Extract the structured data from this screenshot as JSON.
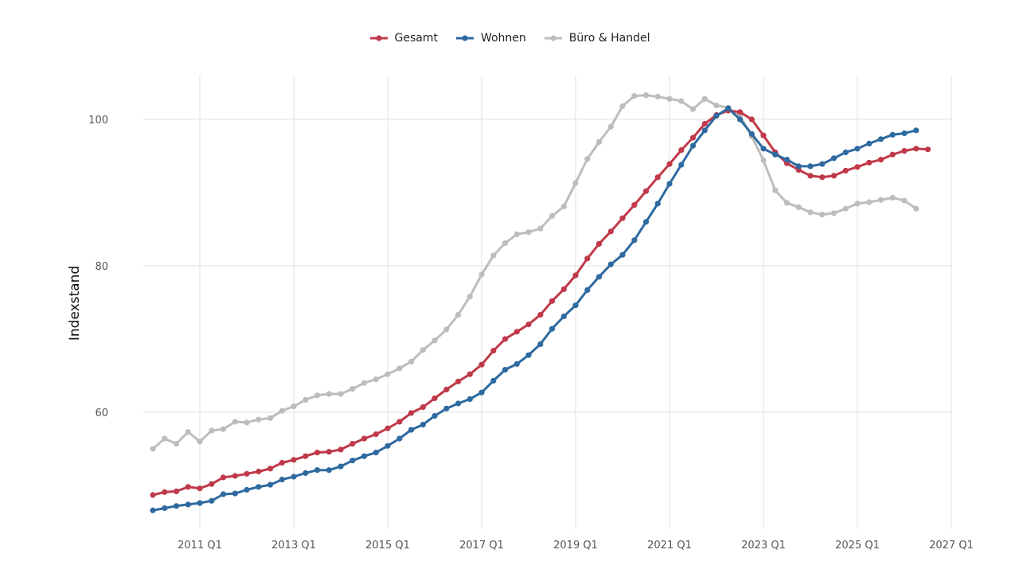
{
  "chart_data": {
    "type": "line",
    "title": "",
    "xlabel": "",
    "ylabel": "Indexstand",
    "legend_position": "top",
    "grid": true,
    "x_start": "2010 Q1",
    "x_ticks": [
      "2011 Q1",
      "2013 Q1",
      "2015 Q1",
      "2017 Q1",
      "2019 Q1",
      "2021 Q1",
      "2023 Q1",
      "2025 Q1",
      "2027 Q1"
    ],
    "y_ticks": [
      60,
      80,
      100
    ],
    "ylim": [
      45,
      106
    ],
    "series": [
      {
        "name": "Gesamt",
        "color": "#c0394a",
        "values": [
          48.7,
          49.1,
          49.2,
          49.8,
          49.6,
          50.2,
          51.1,
          51.3,
          51.6,
          51.9,
          52.3,
          53.1,
          53.5,
          54.0,
          54.5,
          54.6,
          54.9,
          55.7,
          56.4,
          57.0,
          57.8,
          58.7,
          59.9,
          60.7,
          61.9,
          63.1,
          64.2,
          65.2,
          66.5,
          68.4,
          70.0,
          71.0,
          72.0,
          73.3,
          75.2,
          76.8,
          78.7,
          81.0,
          83.0,
          84.7,
          86.5,
          88.3,
          90.2,
          92.1,
          93.9,
          95.8,
          97.5,
          99.4,
          100.6,
          101.2,
          101.0,
          100.0,
          97.8,
          95.5,
          94.0,
          93.1,
          92.3,
          92.1,
          92.3,
          93.0,
          93.5,
          94.1,
          94.5,
          95.2,
          95.7,
          96.0,
          95.9
        ]
      },
      {
        "name": "Wohnen",
        "color": "#2e6aa0",
        "values": [
          46.6,
          46.9,
          47.2,
          47.4,
          47.6,
          47.9,
          48.8,
          48.9,
          49.4,
          49.8,
          50.1,
          50.8,
          51.2,
          51.7,
          52.1,
          52.1,
          52.6,
          53.4,
          54.0,
          54.5,
          55.4,
          56.4,
          57.6,
          58.3,
          59.5,
          60.5,
          61.2,
          61.8,
          62.7,
          64.3,
          65.8,
          66.6,
          67.8,
          69.3,
          71.4,
          73.1,
          74.6,
          76.7,
          78.5,
          80.2,
          81.5,
          83.5,
          86.0,
          88.5,
          91.2,
          93.8,
          96.4,
          98.5,
          100.5,
          101.5,
          100.0,
          98.0,
          96.0,
          95.2,
          94.5,
          93.6,
          93.6,
          93.9,
          94.7,
          95.5,
          96.0,
          96.7,
          97.3,
          97.9,
          98.1,
          98.5
        ]
      },
      {
        "name": "Büro & Handel",
        "color": "#bdbdbd",
        "values": [
          55.0,
          56.4,
          55.7,
          57.3,
          56.0,
          57.5,
          57.7,
          58.7,
          58.6,
          59.0,
          59.2,
          60.2,
          60.8,
          61.7,
          62.3,
          62.5,
          62.5,
          63.2,
          64.0,
          64.5,
          65.2,
          66.0,
          66.9,
          68.5,
          69.8,
          71.3,
          73.3,
          75.8,
          78.8,
          81.4,
          83.1,
          84.3,
          84.6,
          85.1,
          86.8,
          88.1,
          91.3,
          94.6,
          96.9,
          99.0,
          101.8,
          103.2,
          103.3,
          103.1,
          102.8,
          102.5,
          101.4,
          102.8,
          101.9,
          101.6,
          100.5,
          97.7,
          94.4,
          90.3,
          88.6,
          88.0,
          87.3,
          87.0,
          87.2,
          87.8,
          88.5,
          88.7,
          89.0,
          89.3,
          88.9,
          87.8
        ]
      }
    ]
  }
}
